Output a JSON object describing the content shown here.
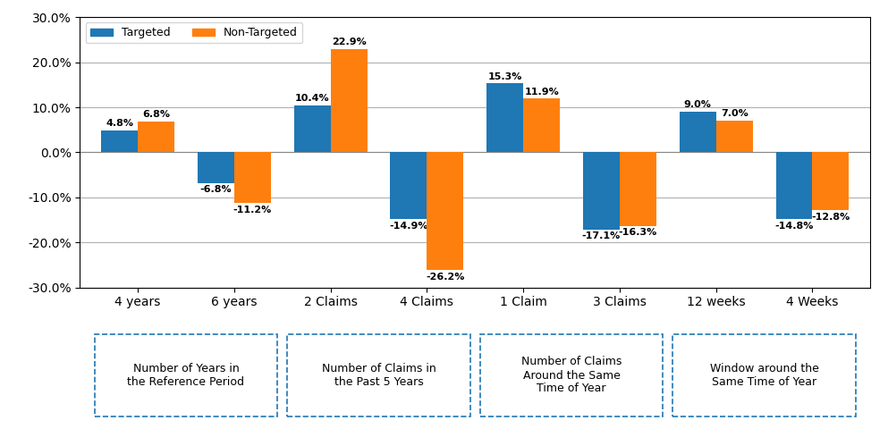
{
  "chart_data": {
    "type": "bar",
    "categories": [
      "4 years",
      "6 years",
      "2 Claims",
      "4 Claims",
      "1 Claim",
      "3 Claims",
      "12 weeks",
      "4 Weeks"
    ],
    "series": [
      {
        "name": "Targeted",
        "values": [
          4.8,
          -6.8,
          10.4,
          -14.9,
          15.3,
          -17.1,
          9.0,
          -14.8
        ],
        "value_labels": [
          "4.8%",
          "-6.8%",
          "10.4%",
          "-14.9%",
          "15.3%",
          "-17.1%",
          "9.0%",
          "-14.8%"
        ]
      },
      {
        "name": "Non-Targeted",
        "values": [
          6.8,
          -11.2,
          22.9,
          -26.2,
          11.9,
          -16.3,
          7.0,
          -12.8
        ],
        "value_labels": [
          "6.8%",
          "-11.2%",
          "22.9%",
          "-26.2%",
          "11.9%",
          "-16.3%",
          "7.0%",
          "-12.8%"
        ]
      }
    ],
    "annotations": [
      "Number of Years in\nthe Reference Period",
      "Number of Claims in\nthe Past 5 Years",
      "Number of Claims\nAround the Same\nTime of Year",
      "Window around the\nSame Time of Year"
    ],
    "ylim": [
      -30.0,
      30.0
    ],
    "yticks": [
      {
        "value": -30.0,
        "label": "-30.0%"
      },
      {
        "value": -20.0,
        "label": "-20.0%"
      },
      {
        "value": -10.0,
        "label": "-10.0%"
      },
      {
        "value": 0.0,
        "label": "0.0%"
      },
      {
        "value": 10.0,
        "label": "10.0%"
      },
      {
        "value": 20.0,
        "label": "20.0%"
      },
      {
        "value": 30.0,
        "label": "30.0%"
      }
    ],
    "grid": true,
    "legend": "upper left",
    "data_labels": true
  }
}
